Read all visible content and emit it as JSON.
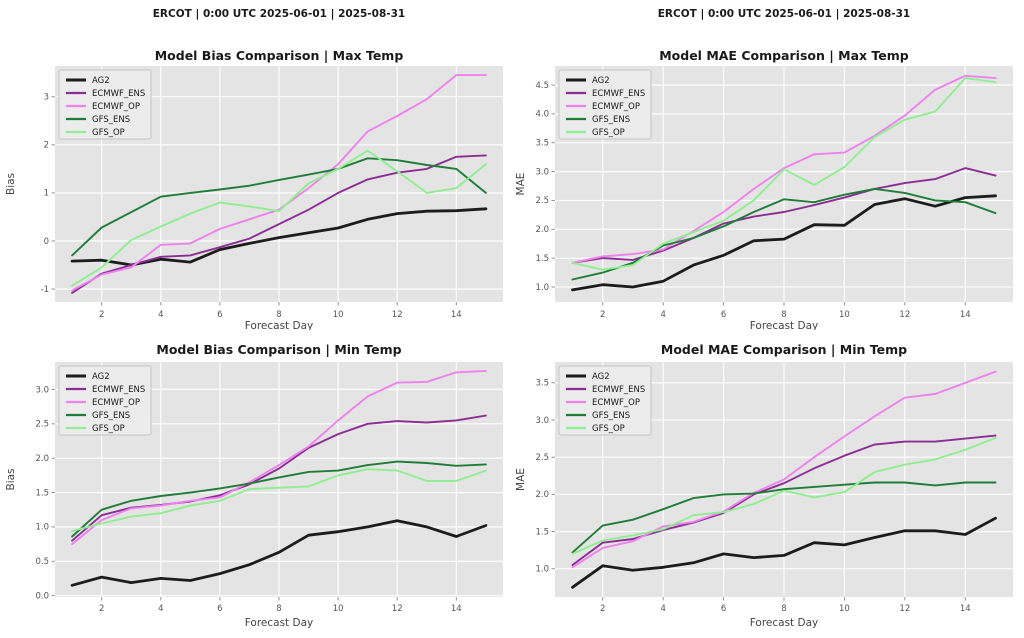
{
  "figure": {
    "suptitles": [
      "ERCOT | 0:00 UTC 2025-06-01 | 2025-08-31",
      "ERCOT | 0:00 UTC 2025-06-01 | 2025-08-31"
    ],
    "background": "#ffffff",
    "plot_background": "#e4e4e4",
    "grid_color": "#ffffff",
    "tick_text_color": "#555555",
    "axis_label_color": "#444444",
    "title_color": "#1a1a1a",
    "legend_background": "#ececec",
    "legend_border": "#c4c4c4"
  },
  "series_meta": [
    {
      "name": "AG2",
      "color": "#1c1c1c",
      "width": 2.8
    },
    {
      "name": "ECMWF_ENS",
      "color": "#8c2d96",
      "width": 1.9
    },
    {
      "name": "ECMWF_OP",
      "color": "#ee82ee",
      "width": 1.9
    },
    {
      "name": "GFS_ENS",
      "color": "#1f7d38",
      "width": 1.9
    },
    {
      "name": "GFS_OP",
      "color": "#90ee90",
      "width": 1.9
    }
  ],
  "chart_data": [
    {
      "id": "bias-max",
      "type": "line",
      "title": "Model Bias Comparison | Max Temp",
      "xlabel": "Forecast Day",
      "ylabel": "Bias",
      "x": [
        1,
        2,
        3,
        4,
        5,
        6,
        7,
        8,
        9,
        10,
        11,
        12,
        13,
        14,
        15
      ],
      "xticks": [
        2,
        4,
        6,
        8,
        10,
        12,
        14
      ],
      "yticks": [
        -1,
        0,
        1,
        2,
        3
      ],
      "ytick_labels": [
        "-1",
        "0",
        "1",
        "2",
        "3"
      ],
      "xlim": [
        0.42,
        15.58
      ],
      "ylim": [
        -1.27,
        3.64
      ],
      "grid": true,
      "legend_position": "upper left",
      "series": [
        {
          "name": "AG2",
          "values": [
            -0.42,
            -0.4,
            -0.5,
            -0.38,
            -0.44,
            -0.18,
            -0.05,
            0.07,
            0.17,
            0.27,
            0.45,
            0.57,
            0.62,
            0.63,
            0.67
          ]
        },
        {
          "name": "ECMWF_ENS",
          "values": [
            -1.08,
            -0.68,
            -0.5,
            -0.33,
            -0.3,
            -0.13,
            0.05,
            0.35,
            0.65,
            1.0,
            1.28,
            1.42,
            1.5,
            1.75,
            1.78
          ]
        },
        {
          "name": "ECMWF_OP",
          "values": [
            -1.03,
            -0.7,
            -0.55,
            -0.08,
            -0.05,
            0.25,
            0.45,
            0.65,
            1.1,
            1.6,
            2.28,
            2.6,
            2.95,
            3.45,
            3.45
          ]
        },
        {
          "name": "GFS_ENS",
          "values": [
            -0.3,
            0.28,
            0.6,
            0.92,
            1.0,
            1.07,
            1.15,
            1.27,
            1.38,
            1.5,
            1.72,
            1.68,
            1.58,
            1.5,
            1.0
          ]
        },
        {
          "name": "GFS_OP",
          "values": [
            -0.93,
            -0.55,
            0.02,
            0.3,
            0.57,
            0.8,
            0.72,
            0.62,
            1.2,
            1.5,
            1.88,
            1.45,
            1.0,
            1.1,
            1.6
          ]
        }
      ]
    },
    {
      "id": "mae-max",
      "type": "line",
      "title": "Model MAE Comparison | Max Temp",
      "xlabel": "Forecast Day",
      "ylabel": "MAE",
      "x": [
        1,
        2,
        3,
        4,
        5,
        6,
        7,
        8,
        9,
        10,
        11,
        12,
        13,
        14,
        15
      ],
      "xticks": [
        2,
        4,
        6,
        8,
        10,
        12,
        14
      ],
      "yticks": [
        1.0,
        1.5,
        2.0,
        2.5,
        3.0,
        3.5,
        4.0,
        4.5
      ],
      "ytick_labels": [
        "1.0",
        "1.5",
        "2.0",
        "2.5",
        "3.0",
        "3.5",
        "4.0",
        "4.5"
      ],
      "xlim": [
        0.42,
        15.58
      ],
      "ylim": [
        0.74,
        4.83
      ],
      "grid": true,
      "legend_position": "upper left",
      "series": [
        {
          "name": "AG2",
          "values": [
            0.95,
            1.04,
            1.0,
            1.1,
            1.38,
            1.55,
            1.8,
            1.83,
            2.08,
            2.07,
            2.43,
            2.53,
            2.4,
            2.55,
            2.58
          ]
        },
        {
          "name": "ECMWF_ENS",
          "values": [
            1.42,
            1.5,
            1.47,
            1.63,
            1.85,
            2.1,
            2.22,
            2.3,
            2.42,
            2.55,
            2.7,
            2.8,
            2.87,
            3.06,
            2.93
          ]
        },
        {
          "name": "ECMWF_OP",
          "values": [
            1.42,
            1.53,
            1.57,
            1.65,
            1.97,
            2.3,
            2.7,
            3.06,
            3.3,
            3.33,
            3.62,
            3.97,
            4.42,
            4.66,
            4.62
          ]
        },
        {
          "name": "GFS_ENS",
          "values": [
            1.13,
            1.25,
            1.42,
            1.72,
            1.85,
            2.05,
            2.3,
            2.52,
            2.47,
            2.6,
            2.7,
            2.63,
            2.5,
            2.47,
            2.28
          ]
        },
        {
          "name": "GFS_OP",
          "values": [
            1.42,
            1.3,
            1.38,
            1.75,
            1.95,
            2.15,
            2.5,
            3.04,
            2.77,
            3.08,
            3.6,
            3.9,
            4.04,
            4.62,
            4.55
          ]
        }
      ]
    },
    {
      "id": "bias-min",
      "type": "line",
      "title": "Model Bias Comparison | Min Temp",
      "xlabel": "Forecast Day",
      "ylabel": "Bias",
      "x": [
        1,
        2,
        3,
        4,
        5,
        6,
        7,
        8,
        9,
        10,
        11,
        12,
        13,
        14,
        15
      ],
      "xticks": [
        2,
        4,
        6,
        8,
        10,
        12,
        14
      ],
      "yticks": [
        0.0,
        0.5,
        1.0,
        1.5,
        2.0,
        2.5,
        3.0
      ],
      "ytick_labels": [
        "0.0",
        "0.5",
        "1.0",
        "1.5",
        "2.0",
        "2.5",
        "3.0"
      ],
      "xlim": [
        0.42,
        15.58
      ],
      "ylim": [
        -0.02,
        3.4
      ],
      "grid": true,
      "legend_position": "upper left",
      "series": [
        {
          "name": "AG2",
          "values": [
            0.15,
            0.27,
            0.19,
            0.25,
            0.22,
            0.32,
            0.45,
            0.63,
            0.88,
            0.93,
            1.0,
            1.09,
            1.0,
            0.86,
            1.02
          ]
        },
        {
          "name": "ECMWF_ENS",
          "values": [
            0.8,
            1.17,
            1.28,
            1.32,
            1.37,
            1.46,
            1.62,
            1.85,
            2.15,
            2.35,
            2.5,
            2.54,
            2.52,
            2.55,
            2.62
          ]
        },
        {
          "name": "ECMWF_OP",
          "values": [
            0.75,
            1.1,
            1.27,
            1.31,
            1.38,
            1.43,
            1.65,
            1.9,
            2.17,
            2.55,
            2.9,
            3.1,
            3.11,
            3.25,
            3.27
          ]
        },
        {
          "name": "GFS_ENS",
          "values": [
            0.86,
            1.25,
            1.38,
            1.45,
            1.5,
            1.56,
            1.63,
            1.72,
            1.8,
            1.82,
            1.9,
            1.95,
            1.93,
            1.89,
            1.91
          ]
        },
        {
          "name": "GFS_OP",
          "values": [
            0.94,
            1.05,
            1.15,
            1.2,
            1.31,
            1.38,
            1.55,
            1.57,
            1.59,
            1.75,
            1.84,
            1.82,
            1.67,
            1.67,
            1.82
          ]
        }
      ]
    },
    {
      "id": "mae-min",
      "type": "line",
      "title": "Model MAE Comparison | Min Temp",
      "xlabel": "Forecast Day",
      "ylabel": "MAE",
      "x": [
        1,
        2,
        3,
        4,
        5,
        6,
        7,
        8,
        9,
        10,
        11,
        12,
        13,
        14,
        15
      ],
      "xticks": [
        2,
        4,
        6,
        8,
        10,
        12,
        14
      ],
      "yticks": [
        1.0,
        1.5,
        2.0,
        2.5,
        3.0,
        3.5
      ],
      "ytick_labels": [
        "1.0",
        "1.5",
        "2.0",
        "2.5",
        "3.0",
        "3.5"
      ],
      "xlim": [
        0.42,
        15.58
      ],
      "ylim": [
        0.62,
        3.78
      ],
      "grid": true,
      "legend_position": "upper left",
      "series": [
        {
          "name": "AG2",
          "values": [
            0.75,
            1.04,
            0.98,
            1.02,
            1.08,
            1.2,
            1.15,
            1.18,
            1.35,
            1.32,
            1.42,
            1.51,
            1.51,
            1.46,
            1.68
          ]
        },
        {
          "name": "ECMWF_ENS",
          "values": [
            1.05,
            1.35,
            1.4,
            1.52,
            1.62,
            1.75,
            2.0,
            2.15,
            2.35,
            2.52,
            2.67,
            2.71,
            2.71,
            2.75,
            2.79
          ]
        },
        {
          "name": "ECMWF_OP",
          "values": [
            1.02,
            1.28,
            1.37,
            1.57,
            1.63,
            1.77,
            2.02,
            2.2,
            2.5,
            2.78,
            3.05,
            3.3,
            3.35,
            3.5,
            3.65
          ]
        },
        {
          "name": "GFS_ENS",
          "values": [
            1.22,
            1.58,
            1.66,
            1.8,
            1.95,
            2.0,
            2.01,
            2.07,
            2.1,
            2.13,
            2.16,
            2.16,
            2.12,
            2.16,
            2.16
          ]
        },
        {
          "name": "GFS_OP",
          "values": [
            1.2,
            1.38,
            1.45,
            1.53,
            1.72,
            1.76,
            1.87,
            2.05,
            1.96,
            2.03,
            2.3,
            2.4,
            2.47,
            2.6,
            2.76
          ]
        }
      ]
    }
  ]
}
